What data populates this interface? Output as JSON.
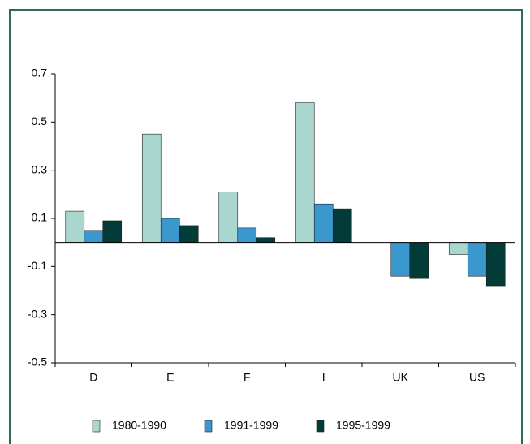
{
  "chart_data": {
    "type": "bar",
    "categories": [
      "D",
      "E",
      "F",
      "I",
      "UK",
      "US"
    ],
    "series": [
      {
        "name": "1980-1990",
        "color": "#a9d6cf",
        "values": [
          0.13,
          0.45,
          0.21,
          0.58,
          0,
          -0.05
        ]
      },
      {
        "name": "1991-1999",
        "color": "#3a98cf",
        "values": [
          0.05,
          0.1,
          0.06,
          0.16,
          -0.14,
          -0.14
        ]
      },
      {
        "name": "1995-1999",
        "color": "#023b38",
        "values": [
          0.09,
          0.07,
          0.02,
          0.14,
          -0.15,
          -0.18
        ]
      }
    ],
    "ylim": [
      -0.5,
      0.7
    ],
    "yticks": [
      -0.5,
      -0.3,
      -0.1,
      0.1,
      0.3,
      0.5,
      0.7
    ],
    "legend": "bottom"
  }
}
